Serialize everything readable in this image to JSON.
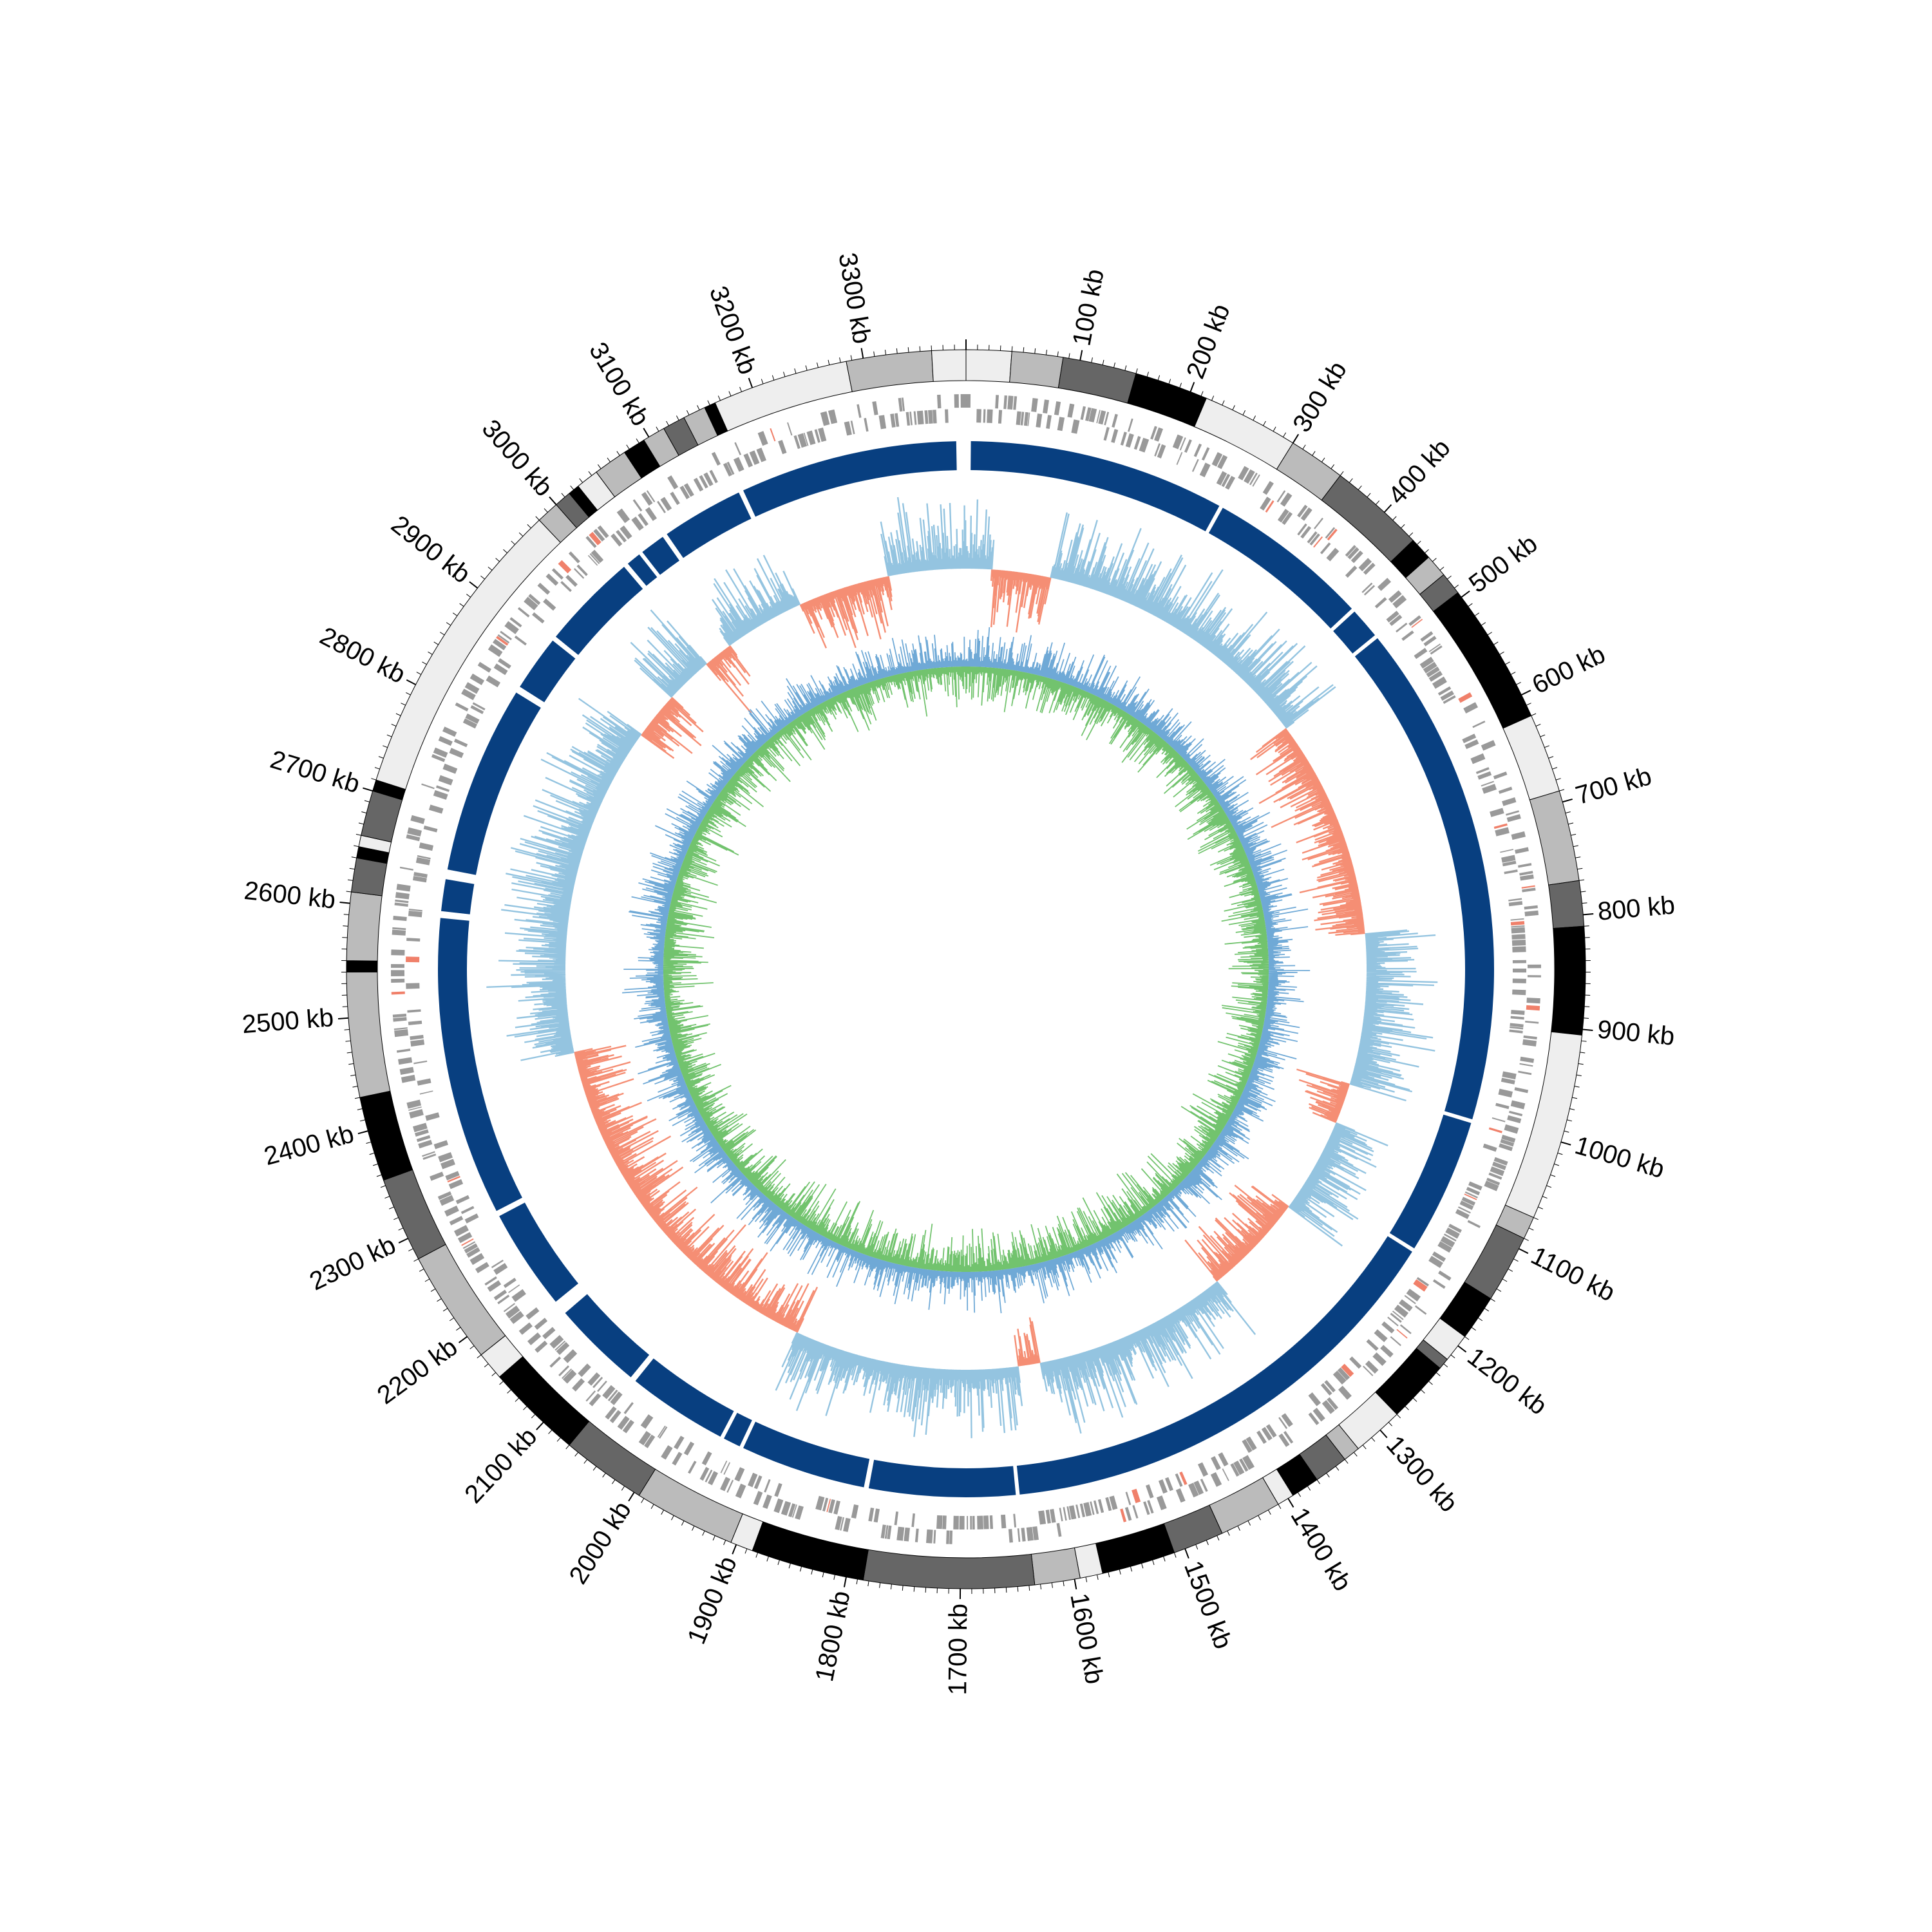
{
  "genome": {
    "total_kb": 3390,
    "tick_labels": [
      "100 kb",
      "200 kb",
      "300 kb",
      "400 kb",
      "500 kb",
      "600 kb",
      "700 kb",
      "800 kb",
      "900 kb",
      "1000 kb",
      "1100 kb",
      "1200 kb",
      "1300 kb",
      "1400 kb",
      "1500 kb",
      "1600 kb",
      "1700 kb",
      "1800 kb",
      "1900 kb",
      "2000 kb",
      "2100 kb",
      "2200 kb",
      "2300 kb",
      "2400 kb",
      "2500 kb",
      "2600 kb",
      "2700 kb",
      "2800 kb",
      "2900 kb",
      "3000 kb",
      "3100 kb",
      "3200 kb",
      "3300 kb"
    ],
    "tick_values_kb": [
      100,
      200,
      300,
      400,
      500,
      600,
      700,
      800,
      900,
      1000,
      1100,
      1200,
      1300,
      1400,
      1500,
      1600,
      1700,
      1800,
      1900,
      2000,
      2100,
      2200,
      2300,
      2400,
      2500,
      2600,
      2700,
      2800,
      2900,
      3000,
      3100,
      3200,
      3300
    ]
  },
  "chart_data": {
    "type": "circular-genome-map",
    "outer_blocks_kb": [
      {
        "start": 0,
        "end": 40,
        "shade": "#eeeeee"
      },
      {
        "start": 40,
        "end": 85,
        "shade": "#bbbbbb"
      },
      {
        "start": 85,
        "end": 150,
        "shade": "#666666"
      },
      {
        "start": 150,
        "end": 215,
        "shade": "#000000"
      },
      {
        "start": 215,
        "end": 300,
        "shade": "#eeeeee"
      },
      {
        "start": 300,
        "end": 350,
        "shade": "#bbbbbb"
      },
      {
        "start": 350,
        "end": 435,
        "shade": "#666666"
      },
      {
        "start": 435,
        "end": 455,
        "shade": "#000000"
      },
      {
        "start": 455,
        "end": 475,
        "shade": "#bbbbbb"
      },
      {
        "start": 475,
        "end": 495,
        "shade": "#666666"
      },
      {
        "start": 495,
        "end": 620,
        "shade": "#000000"
      },
      {
        "start": 620,
        "end": 690,
        "shade": "#eeeeee"
      },
      {
        "start": 690,
        "end": 770,
        "shade": "#bbbbbb"
      },
      {
        "start": 770,
        "end": 810,
        "shade": "#666666"
      },
      {
        "start": 810,
        "end": 905,
        "shade": "#000000"
      },
      {
        "start": 905,
        "end": 1070,
        "shade": "#eeeeee"
      },
      {
        "start": 1070,
        "end": 1090,
        "shade": "#bbbbbb"
      },
      {
        "start": 1090,
        "end": 1150,
        "shade": "#666666"
      },
      {
        "start": 1150,
        "end": 1190,
        "shade": "#000000"
      },
      {
        "start": 1190,
        "end": 1215,
        "shade": "#eeeeee"
      },
      {
        "start": 1215,
        "end": 1225,
        "shade": "#666666"
      },
      {
        "start": 1225,
        "end": 1280,
        "shade": "#000000"
      },
      {
        "start": 1280,
        "end": 1325,
        "shade": "#eeeeee"
      },
      {
        "start": 1325,
        "end": 1340,
        "shade": "#bbbbbb"
      },
      {
        "start": 1340,
        "end": 1370,
        "shade": "#666666"
      },
      {
        "start": 1370,
        "end": 1395,
        "shade": "#000000"
      },
      {
        "start": 1395,
        "end": 1410,
        "shade": "#eeeeee"
      },
      {
        "start": 1410,
        "end": 1465,
        "shade": "#bbbbbb"
      },
      {
        "start": 1465,
        "end": 1510,
        "shade": "#666666"
      },
      {
        "start": 1510,
        "end": 1575,
        "shade": "#000000"
      },
      {
        "start": 1575,
        "end": 1595,
        "shade": "#eeeeee"
      },
      {
        "start": 1595,
        "end": 1635,
        "shade": "#bbbbbb"
      },
      {
        "start": 1635,
        "end": 1785,
        "shade": "#666666"
      },
      {
        "start": 1785,
        "end": 1885,
        "shade": "#000000"
      },
      {
        "start": 1885,
        "end": 1905,
        "shade": "#eeeeee"
      },
      {
        "start": 1905,
        "end": 1995,
        "shade": "#bbbbbb"
      },
      {
        "start": 1995,
        "end": 2070,
        "shade": "#666666"
      },
      {
        "start": 2070,
        "end": 2155,
        "shade": "#000000"
      },
      {
        "start": 2155,
        "end": 2180,
        "shade": "#eeeeee"
      },
      {
        "start": 2180,
        "end": 2280,
        "shade": "#bbbbbb"
      },
      {
        "start": 2280,
        "end": 2355,
        "shade": "#666666"
      },
      {
        "start": 2355,
        "end": 2430,
        "shade": "#000000"
      },
      {
        "start": 2430,
        "end": 2540,
        "shade": "#bbbbbb"
      },
      {
        "start": 2540,
        "end": 2550,
        "shade": "#000000"
      },
      {
        "start": 2550,
        "end": 2610,
        "shade": "#bbbbbb"
      },
      {
        "start": 2610,
        "end": 2640,
        "shade": "#666666"
      },
      {
        "start": 2640,
        "end": 2650,
        "shade": "#000000"
      },
      {
        "start": 2650,
        "end": 2660,
        "shade": "#eeeeee"
      },
      {
        "start": 2660,
        "end": 2700,
        "shade": "#666666"
      },
      {
        "start": 2700,
        "end": 2710,
        "shade": "#000000"
      },
      {
        "start": 2710,
        "end": 2980,
        "shade": "#eeeeee"
      },
      {
        "start": 2980,
        "end": 3000,
        "shade": "#bbbbbb"
      },
      {
        "start": 3000,
        "end": 3015,
        "shade": "#666666"
      },
      {
        "start": 3015,
        "end": 3025,
        "shade": "#000000"
      },
      {
        "start": 3025,
        "end": 3045,
        "shade": "#eeeeee"
      },
      {
        "start": 3045,
        "end": 3075,
        "shade": "#bbbbbb"
      },
      {
        "start": 3075,
        "end": 3095,
        "shade": "#000000"
      },
      {
        "start": 3095,
        "end": 3115,
        "shade": "#bbbbbb"
      },
      {
        "start": 3115,
        "end": 3135,
        "shade": "#666666"
      },
      {
        "start": 3135,
        "end": 3155,
        "shade": "#bbbbbb"
      },
      {
        "start": 3155,
        "end": 3165,
        "shade": "#000000"
      },
      {
        "start": 3165,
        "end": 3285,
        "shade": "#eeeeee"
      },
      {
        "start": 3285,
        "end": 3360,
        "shade": "#bbbbbb"
      },
      {
        "start": 3360,
        "end": 3390,
        "shade": "#eeeeee"
      }
    ],
    "blue_ring_segments_kb": [
      {
        "start": 5,
        "end": 270
      },
      {
        "start": 274,
        "end": 442
      },
      {
        "start": 446,
        "end": 478
      },
      {
        "start": 482,
        "end": 1003
      },
      {
        "start": 1007,
        "end": 1148
      },
      {
        "start": 1152,
        "end": 1640
      },
      {
        "start": 1644,
        "end": 1795
      },
      {
        "start": 1800,
        "end": 1930
      },
      {
        "start": 1934,
        "end": 1952
      },
      {
        "start": 1956,
        "end": 2060
      },
      {
        "start": 2066,
        "end": 2160
      },
      {
        "start": 2175,
        "end": 2280
      },
      {
        "start": 2286,
        "end": 2595
      },
      {
        "start": 2602,
        "end": 2635
      },
      {
        "start": 2645,
        "end": 2840
      },
      {
        "start": 2847,
        "end": 2905
      },
      {
        "start": 2910,
        "end": 3010
      },
      {
        "start": 3015,
        "end": 3030
      },
      {
        "start": 3034,
        "end": 3060
      },
      {
        "start": 3065,
        "end": 3150
      },
      {
        "start": 3155,
        "end": 3380
      }
    ],
    "skew_track_regions_kb": [
      {
        "start": 0,
        "end": 35,
        "sign": "positive"
      },
      {
        "start": 35,
        "end": 50,
        "sign": "negative"
      },
      {
        "start": 50,
        "end": 115,
        "sign": "negative"
      },
      {
        "start": 115,
        "end": 500,
        "sign": "positive"
      },
      {
        "start": 500,
        "end": 800,
        "sign": "negative"
      },
      {
        "start": 800,
        "end": 1005,
        "sign": "positive"
      },
      {
        "start": 1005,
        "end": 1060,
        "sign": "negative"
      },
      {
        "start": 1060,
        "end": 1190,
        "sign": "positive"
      },
      {
        "start": 1190,
        "end": 1330,
        "sign": "negative"
      },
      {
        "start": 1330,
        "end": 1595,
        "sign": "positive"
      },
      {
        "start": 1595,
        "end": 1625,
        "sign": "negative"
      },
      {
        "start": 1625,
        "end": 1930,
        "sign": "positive"
      },
      {
        "start": 1930,
        "end": 2430,
        "sign": "negative"
      },
      {
        "start": 2430,
        "end": 2880,
        "sign": "positive"
      },
      {
        "start": 2880,
        "end": 2945,
        "sign": "negative"
      },
      {
        "start": 2945,
        "end": 3010,
        "sign": "positive"
      },
      {
        "start": 3010,
        "end": 3050,
        "sign": "negative"
      },
      {
        "start": 3050,
        "end": 3160,
        "sign": "positive"
      },
      {
        "start": 3160,
        "end": 3285,
        "sign": "negative"
      },
      {
        "start": 3285,
        "end": 3390,
        "sign": "positive"
      }
    ],
    "colors": {
      "blue_ring": "#083f80",
      "skew_positive": "#94c4e0",
      "skew_negative": "#f58e74",
      "gc_blue": "#6fa9d6",
      "gc_green": "#72c36e",
      "feature_gray": "#999999",
      "feature_red": "#f0806a"
    }
  }
}
